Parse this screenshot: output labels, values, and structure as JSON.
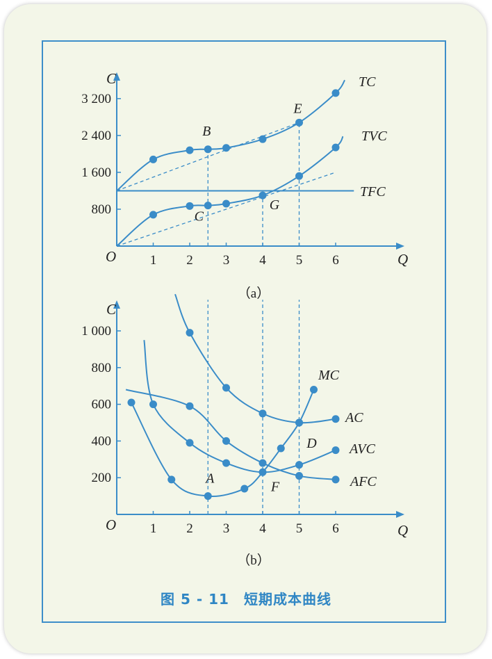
{
  "figure_caption": "图 5 - 11　短期成本曲线",
  "colors": {
    "curve": "#3a8cc8",
    "text": "#222222",
    "background": "#f3f6e8"
  },
  "chart_data": [
    {
      "panel_label": "（a）",
      "type": "line",
      "xlabel": "Q",
      "ylabel": "C",
      "origin_label": "O",
      "xlim": [
        0,
        7.5
      ],
      "ylim": [
        0,
        3800
      ],
      "x_ticks": [
        1,
        2,
        3,
        4,
        5,
        6
      ],
      "y_ticks": [
        800,
        1600,
        2400,
        3200
      ],
      "y_tick_labels": [
        "800",
        "1 600",
        "2 400",
        "3 200"
      ],
      "series": [
        {
          "name": "TC",
          "x": [
            1,
            2,
            2.5,
            3,
            4,
            5,
            6
          ],
          "y": [
            1880,
            2080,
            2100,
            2130,
            2320,
            2680,
            3320
          ]
        },
        {
          "name": "TVC",
          "x": [
            1,
            2,
            2.5,
            3,
            4,
            5,
            6
          ],
          "y": [
            680,
            870,
            880,
            920,
            1100,
            1520,
            2140
          ]
        },
        {
          "name": "TFC",
          "x": [
            0,
            6.5
          ],
          "y": [
            1200,
            1200
          ]
        }
      ],
      "reference_lines": [
        {
          "type": "ray",
          "from": [
            0,
            1200
          ],
          "to": [
            5,
            2680
          ]
        },
        {
          "type": "ray",
          "from": [
            0,
            0
          ],
          "to": [
            6,
            1600
          ]
        },
        {
          "type": "vline",
          "x": 2.5,
          "from_curve": "TC"
        },
        {
          "type": "vline",
          "x": 4,
          "from_curve": "TVC"
        },
        {
          "type": "vline",
          "x": 5,
          "from_curve": "TC"
        }
      ],
      "annotations": [
        {
          "text": "B",
          "x": 2.5,
          "y": 2100
        },
        {
          "text": "C",
          "x": 2.5,
          "y": 880
        },
        {
          "text": "E",
          "x": 5,
          "y": 2680
        },
        {
          "text": "G",
          "x": 4,
          "y": 1100
        }
      ]
    },
    {
      "panel_label": "（b）",
      "type": "line",
      "xlabel": "Q",
      "ylabel": "C",
      "origin_label": "O",
      "xlim": [
        0,
        7.5
      ],
      "ylim": [
        0,
        1200
      ],
      "x_ticks": [
        1,
        2,
        3,
        4,
        5,
        6
      ],
      "y_ticks": [
        200,
        400,
        600,
        800,
        1000
      ],
      "y_tick_labels": [
        "200",
        "400",
        "600",
        "800",
        "1 000"
      ],
      "series": [
        {
          "name": "MC",
          "x": [
            0.4,
            1.5,
            2.5,
            3.5,
            4,
            4.5,
            5,
            5.4
          ],
          "y": [
            610,
            190,
            100,
            140,
            230,
            360,
            500,
            680
          ]
        },
        {
          "name": "AC",
          "x": [
            2,
            3,
            4,
            5,
            6
          ],
          "y": [
            990,
            690,
            550,
            500,
            520
          ]
        },
        {
          "name": "AVC",
          "x": [
            1,
            2,
            3,
            4,
            5,
            6
          ],
          "y": [
            600,
            390,
            280,
            230,
            270,
            350
          ]
        },
        {
          "name": "AFC",
          "x": [
            2,
            3,
            4,
            5,
            6
          ],
          "y": [
            590,
            400,
            280,
            210,
            190
          ]
        }
      ],
      "reference_lines": [
        {
          "type": "vline",
          "x": 2.5,
          "to_y": 1200
        },
        {
          "type": "vline",
          "x": 4,
          "to_y": 1200
        },
        {
          "type": "vline",
          "x": 5,
          "to_y": 1200
        }
      ],
      "annotations": [
        {
          "text": "A",
          "x": 2.5,
          "y": 100
        },
        {
          "text": "F",
          "x": 4,
          "y": 230
        },
        {
          "text": "D",
          "x": 5,
          "y": 500
        }
      ]
    }
  ]
}
